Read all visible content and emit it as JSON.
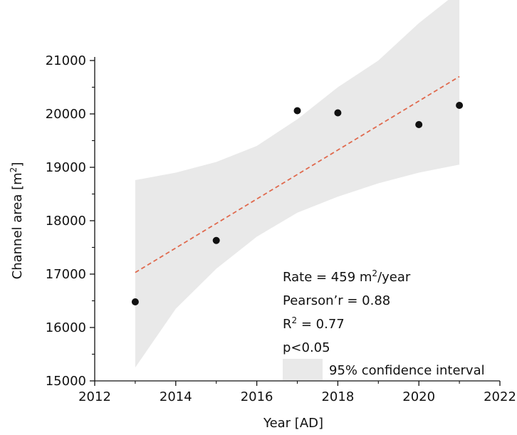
{
  "chart_data": {
    "type": "scatter",
    "xlabel": "Year [AD]",
    "ylabel_main": "Channel area [m",
    "ylabel_sup": "2",
    "ylabel_end": "]",
    "xlim": [
      2012,
      2022
    ],
    "ylim": [
      15000,
      21000
    ],
    "x_ticks": [
      "2012",
      "2014",
      "2016",
      "2018",
      "2020",
      "2022"
    ],
    "y_ticks": [
      "15000",
      "16000",
      "17000",
      "18000",
      "19000",
      "20000",
      "21000"
    ],
    "points": [
      {
        "x": 2013,
        "y": 16480
      },
      {
        "x": 2015,
        "y": 17630
      },
      {
        "x": 2017,
        "y": 20060
      },
      {
        "x": 2018,
        "y": 20020
      },
      {
        "x": 2020,
        "y": 19800
      },
      {
        "x": 2021,
        "y": 20160
      }
    ],
    "fit_line": {
      "x": [
        2013,
        2021
      ],
      "y": [
        17030,
        20700
      ],
      "color": "#e06a4e",
      "style": "dashed"
    },
    "confidence_band": {
      "x": [
        2013,
        2014,
        2015,
        2016,
        2017,
        2018,
        2019,
        2020,
        2021
      ],
      "upper": [
        18760,
        18900,
        19100,
        19400,
        19900,
        20500,
        21000,
        21700,
        22300
      ],
      "lower": [
        15250,
        16350,
        17100,
        17700,
        18150,
        18450,
        18700,
        18900,
        19050
      ],
      "color": "#e9e9e9"
    },
    "point_color": "#111111",
    "annotations": {
      "rate_prefix": "Rate = 459 m",
      "rate_sup": "2",
      "rate_suffix": "/year",
      "pearson": "Pearson’r = 0.88",
      "r2_prefix": "R",
      "r2_sup": "2",
      "r2_suffix": " = 0.77",
      "pvalue": "p<0.05"
    },
    "legend": {
      "label": "95% confidence interval",
      "placement": "bottom-right"
    }
  }
}
